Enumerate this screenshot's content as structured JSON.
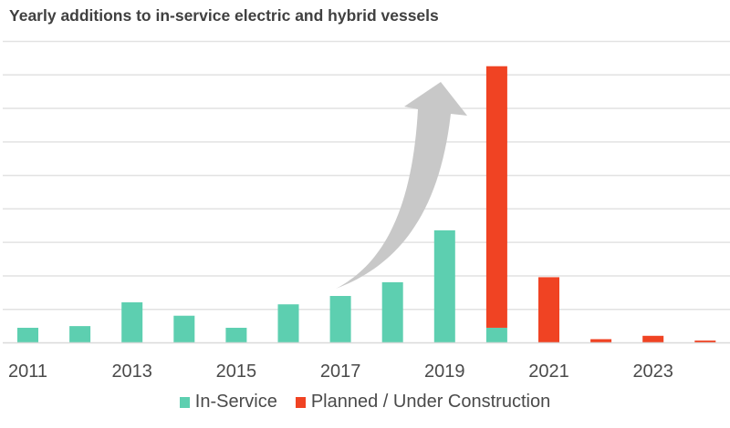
{
  "chart_data": {
    "type": "bar",
    "stacked": true,
    "title": "Yearly additions to in-service electric and hybrid vessels",
    "xlabel": "",
    "ylabel": "",
    "categories": [
      "2011",
      "2012",
      "2013",
      "2014",
      "2015",
      "2016",
      "2017",
      "2018",
      "2019",
      "2020",
      "2021",
      "2022",
      "2023",
      "2024"
    ],
    "tick_labels": [
      "2011",
      "2013",
      "2015",
      "2017",
      "2019",
      "2021",
      "2023"
    ],
    "series": [
      {
        "name": "In-Service",
        "color": "#5dcfb0",
        "values": [
          4.5,
          5.0,
          12.1,
          8.1,
          4.5,
          11.5,
          14.0,
          18.1,
          33.6,
          4.5,
          0,
          0,
          0,
          0
        ]
      },
      {
        "name": "Planned / Under Construction",
        "color": "#f04323",
        "values": [
          0,
          0,
          0,
          0,
          0,
          0,
          0,
          0,
          0,
          78.1,
          19.6,
          1.1,
          2.1,
          0.7
        ]
      }
    ],
    "ylim": [
      0,
      90
    ],
    "y_gridline_step": 10,
    "y_tick_labels_shown": false,
    "grid": true,
    "legend": {
      "position": "bottom",
      "entries": [
        "In-Service",
        "Planned / Under Construction"
      ]
    },
    "annotations": [
      {
        "type": "arrow",
        "description": "curved upward growth arrow",
        "from_category": "2017",
        "to_category": "2020",
        "color": "#c8c8c8"
      }
    ]
  }
}
